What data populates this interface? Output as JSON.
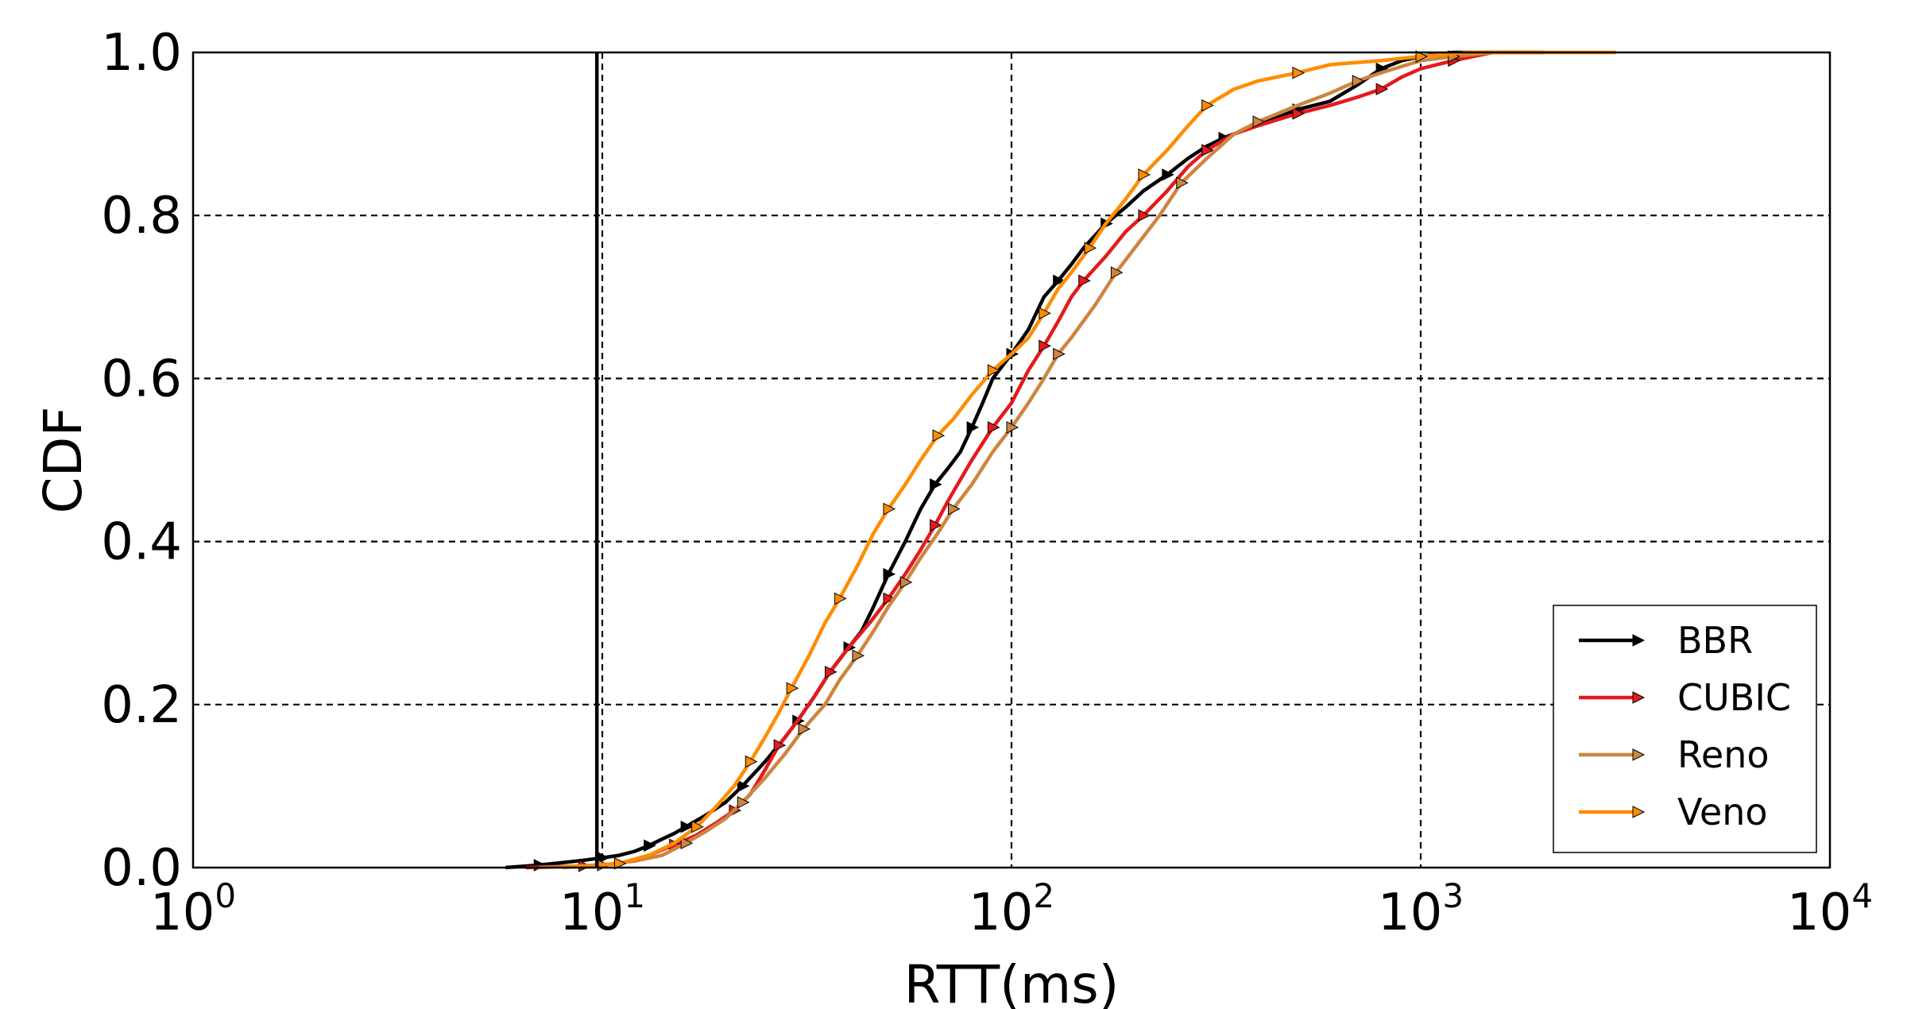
{
  "chart_data": {
    "type": "line",
    "title": "",
    "xlabel": "RTT(ms)",
    "ylabel": "CDF",
    "xscale": "log",
    "xlim": [
      1,
      10000
    ],
    "ylim": [
      0.0,
      1.0
    ],
    "grid": true,
    "legend_position": "bottom-right",
    "x_ticks": [
      {
        "base": "10",
        "exp": "0",
        "value": 1
      },
      {
        "base": "10",
        "exp": "1",
        "value": 10
      },
      {
        "base": "10",
        "exp": "2",
        "value": 100
      },
      {
        "base": "10",
        "exp": "3",
        "value": 1000
      },
      {
        "base": "10",
        "exp": "4",
        "value": 10000
      }
    ],
    "y_ticks": [
      "0.0",
      "0.2",
      "0.4",
      "0.6",
      "0.8",
      "1.0"
    ],
    "vertical_line": {
      "x": 9.7,
      "color": "#000000"
    },
    "series": [
      {
        "name": "BBR",
        "color": "#000000",
        "points": [
          [
            5.8,
            0.0
          ],
          [
            7,
            0.003
          ],
          [
            8,
            0.006
          ],
          [
            9,
            0.009
          ],
          [
            10,
            0.012
          ],
          [
            11,
            0.015
          ],
          [
            12,
            0.02
          ],
          [
            13,
            0.027
          ],
          [
            14,
            0.035
          ],
          [
            15,
            0.042
          ],
          [
            16,
            0.05
          ],
          [
            18,
            0.065
          ],
          [
            20,
            0.08
          ],
          [
            22,
            0.1
          ],
          [
            25,
            0.13
          ],
          [
            28,
            0.16
          ],
          [
            30,
            0.18
          ],
          [
            33,
            0.21
          ],
          [
            36,
            0.24
          ],
          [
            40,
            0.27
          ],
          [
            43,
            0.29
          ],
          [
            46,
            0.32
          ],
          [
            50,
            0.36
          ],
          [
            55,
            0.4
          ],
          [
            60,
            0.44
          ],
          [
            65,
            0.47
          ],
          [
            70,
            0.49
          ],
          [
            75,
            0.51
          ],
          [
            80,
            0.54
          ],
          [
            85,
            0.57
          ],
          [
            90,
            0.6
          ],
          [
            100,
            0.63
          ],
          [
            110,
            0.66
          ],
          [
            120,
            0.7
          ],
          [
            130,
            0.72
          ],
          [
            140,
            0.74
          ],
          [
            150,
            0.76
          ],
          [
            170,
            0.79
          ],
          [
            190,
            0.81
          ],
          [
            210,
            0.83
          ],
          [
            240,
            0.85
          ],
          [
            270,
            0.87
          ],
          [
            300,
            0.885
          ],
          [
            330,
            0.895
          ],
          [
            370,
            0.905
          ],
          [
            420,
            0.915
          ],
          [
            500,
            0.93
          ],
          [
            600,
            0.94
          ],
          [
            700,
            0.96
          ],
          [
            800,
            0.98
          ],
          [
            900,
            0.99
          ],
          [
            1000,
            0.995
          ],
          [
            1200,
            1.0
          ],
          [
            2000,
            1.0
          ]
        ]
      },
      {
        "name": "CUBIC",
        "color": "#e41a1c",
        "points": [
          [
            6.5,
            0.0
          ],
          [
            9,
            0.002
          ],
          [
            11,
            0.005
          ],
          [
            13,
            0.015
          ],
          [
            15,
            0.028
          ],
          [
            17,
            0.04
          ],
          [
            19,
            0.055
          ],
          [
            21,
            0.07
          ],
          [
            23,
            0.09
          ],
          [
            25,
            0.12
          ],
          [
            27,
            0.15
          ],
          [
            30,
            0.18
          ],
          [
            33,
            0.21
          ],
          [
            36,
            0.24
          ],
          [
            40,
            0.27
          ],
          [
            45,
            0.3
          ],
          [
            50,
            0.33
          ],
          [
            55,
            0.36
          ],
          [
            60,
            0.39
          ],
          [
            65,
            0.42
          ],
          [
            70,
            0.45
          ],
          [
            80,
            0.5
          ],
          [
            90,
            0.54
          ],
          [
            100,
            0.57
          ],
          [
            110,
            0.61
          ],
          [
            120,
            0.64
          ],
          [
            130,
            0.67
          ],
          [
            140,
            0.7
          ],
          [
            150,
            0.72
          ],
          [
            170,
            0.75
          ],
          [
            190,
            0.78
          ],
          [
            210,
            0.8
          ],
          [
            240,
            0.83
          ],
          [
            270,
            0.86
          ],
          [
            300,
            0.88
          ],
          [
            350,
            0.9
          ],
          [
            400,
            0.91
          ],
          [
            500,
            0.925
          ],
          [
            600,
            0.935
          ],
          [
            700,
            0.945
          ],
          [
            800,
            0.955
          ],
          [
            900,
            0.97
          ],
          [
            1000,
            0.98
          ],
          [
            1200,
            0.99
          ],
          [
            1500,
            1.0
          ],
          [
            2000,
            1.0
          ]
        ]
      },
      {
        "name": "Reno",
        "color": "#cd853f",
        "points": [
          [
            7,
            0.0
          ],
          [
            10,
            0.003
          ],
          [
            12,
            0.008
          ],
          [
            14,
            0.015
          ],
          [
            16,
            0.03
          ],
          [
            18,
            0.045
          ],
          [
            20,
            0.06
          ],
          [
            22,
            0.08
          ],
          [
            25,
            0.11
          ],
          [
            28,
            0.14
          ],
          [
            31,
            0.17
          ],
          [
            35,
            0.2
          ],
          [
            38,
            0.23
          ],
          [
            42,
            0.26
          ],
          [
            46,
            0.29
          ],
          [
            50,
            0.32
          ],
          [
            55,
            0.35
          ],
          [
            60,
            0.38
          ],
          [
            66,
            0.41
          ],
          [
            72,
            0.44
          ],
          [
            80,
            0.47
          ],
          [
            90,
            0.51
          ],
          [
            100,
            0.54
          ],
          [
            110,
            0.57
          ],
          [
            120,
            0.6
          ],
          [
            130,
            0.63
          ],
          [
            140,
            0.65
          ],
          [
            160,
            0.69
          ],
          [
            180,
            0.73
          ],
          [
            200,
            0.76
          ],
          [
            230,
            0.8
          ],
          [
            260,
            0.84
          ],
          [
            300,
            0.87
          ],
          [
            350,
            0.9
          ],
          [
            400,
            0.915
          ],
          [
            500,
            0.935
          ],
          [
            600,
            0.95
          ],
          [
            700,
            0.965
          ],
          [
            800,
            0.975
          ],
          [
            1000,
            0.99
          ],
          [
            1200,
            0.995
          ],
          [
            1500,
            1.0
          ],
          [
            2000,
            1.0
          ]
        ]
      },
      {
        "name": "Veno",
        "color": "#ff8c00",
        "points": [
          [
            8,
            0.0
          ],
          [
            11,
            0.005
          ],
          [
            13,
            0.015
          ],
          [
            15,
            0.03
          ],
          [
            17,
            0.05
          ],
          [
            19,
            0.075
          ],
          [
            21,
            0.1
          ],
          [
            23,
            0.13
          ],
          [
            25,
            0.16
          ],
          [
            27,
            0.19
          ],
          [
            29,
            0.22
          ],
          [
            32,
            0.26
          ],
          [
            35,
            0.3
          ],
          [
            38,
            0.33
          ],
          [
            42,
            0.37
          ],
          [
            46,
            0.41
          ],
          [
            50,
            0.44
          ],
          [
            55,
            0.47
          ],
          [
            60,
            0.5
          ],
          [
            66,
            0.53
          ],
          [
            72,
            0.55
          ],
          [
            80,
            0.58
          ],
          [
            90,
            0.61
          ],
          [
            100,
            0.63
          ],
          [
            110,
            0.65
          ],
          [
            120,
            0.68
          ],
          [
            130,
            0.71
          ],
          [
            140,
            0.73
          ],
          [
            155,
            0.76
          ],
          [
            170,
            0.79
          ],
          [
            190,
            0.82
          ],
          [
            210,
            0.85
          ],
          [
            240,
            0.88
          ],
          [
            270,
            0.91
          ],
          [
            300,
            0.935
          ],
          [
            350,
            0.955
          ],
          [
            400,
            0.965
          ],
          [
            500,
            0.975
          ],
          [
            600,
            0.985
          ],
          [
            800,
            0.99
          ],
          [
            1000,
            0.995
          ],
          [
            1300,
            1.0
          ],
          [
            3000,
            1.0
          ]
        ]
      }
    ]
  }
}
